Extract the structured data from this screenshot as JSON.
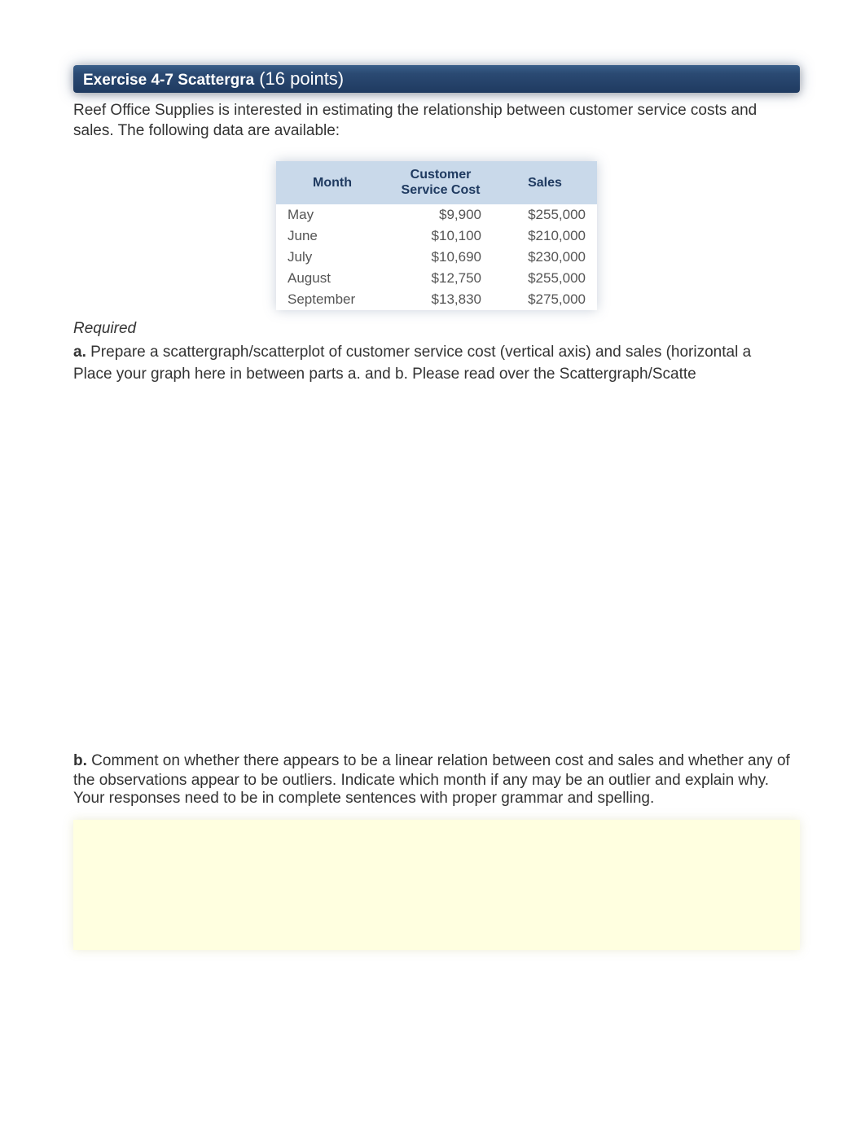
{
  "header": {
    "exercise_title": "Exercise 4-7 Scattergra",
    "points": "(16 points)"
  },
  "intro": "Reef Office Supplies is interested in estimating the relationship between customer service costs and sales. The following data are available:",
  "table": {
    "background_header": "#c9d9ea",
    "header_text_color": "#1f3a60",
    "columns": [
      "Month",
      "Customer Service Cost",
      "Sales"
    ],
    "rows": [
      {
        "month": "May",
        "cost": "$9,900",
        "sales": "$255,000"
      },
      {
        "month": "June",
        "cost": "$10,100",
        "sales": "$210,000"
      },
      {
        "month": "July",
        "cost": "$10,690",
        "sales": "$230,000"
      },
      {
        "month": "August",
        "cost": "$12,750",
        "sales": "$255,000"
      },
      {
        "month": "September",
        "cost": "$13,830",
        "sales": "$275,000"
      }
    ]
  },
  "required_label": "Required",
  "part_a": {
    "label": "a.",
    "text": " Prepare a scattergraph/scatterplot  of customer service cost (vertical axis) and sales (horizontal a",
    "instruction": "Place your graph here in between parts a. and b. Please read over the Scattergraph/Scatte"
  },
  "part_b": {
    "label": "b.",
    "text": " Comment on whether there appears to be a linear relation between cost and sales and whether any of the observations appear to be outliers. Indicate which month if any may be an outlier and explain why.",
    "overlap_text": "Your responses need to be in complete sentences with proper grammar and spelling."
  },
  "colors": {
    "title_gradient_top": "#3a5f8a",
    "title_gradient_bottom": "#1f3a60",
    "body_text": "#333333",
    "table_text": "#555555",
    "answer_box_bg": "#ffffe0"
  }
}
